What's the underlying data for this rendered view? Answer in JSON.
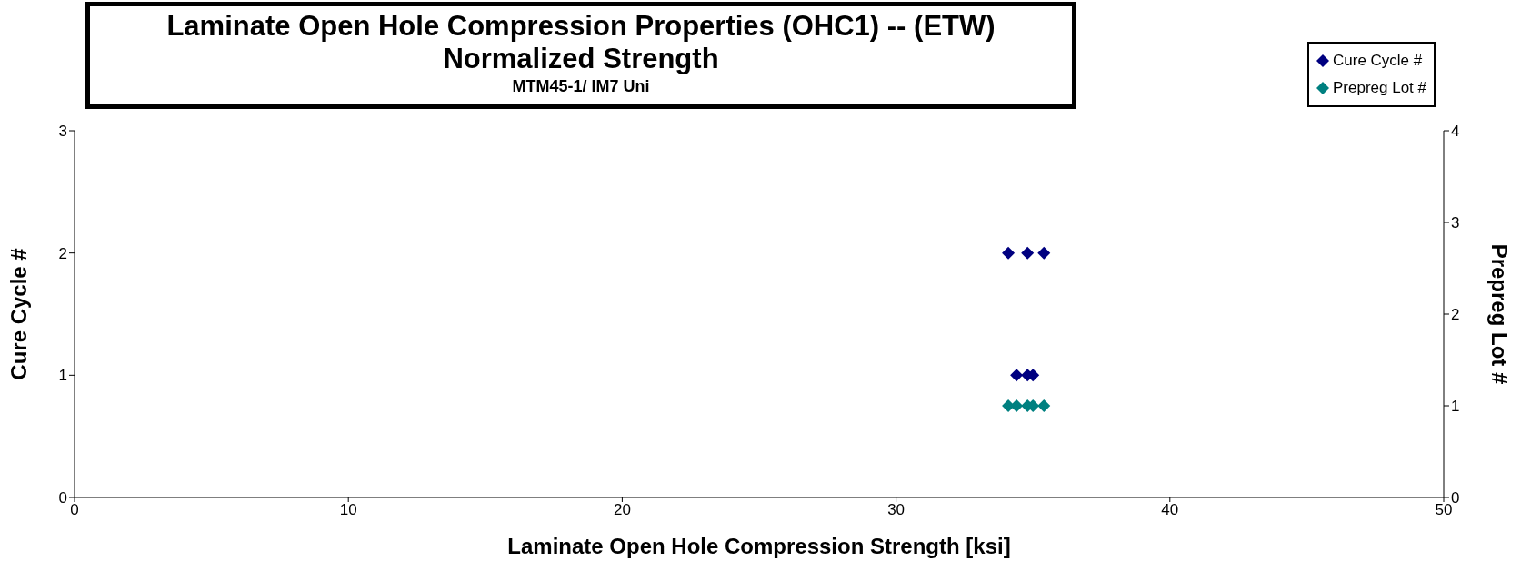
{
  "chart_data": {
    "type": "scatter",
    "title": "Laminate Open Hole Compression Properties (OHC1) -- (ETW)",
    "subtitle": "Normalized Strength",
    "annotations": [
      "MTM45-1/ IM7 Uni"
    ],
    "xlabel": "Laminate Open Hole Compression Strength  [ksi]",
    "ylabel": "Cure Cycle  #",
    "y2label": "Prepreg Lot #",
    "xlim": [
      0,
      50
    ],
    "xticks": [
      0,
      10,
      20,
      30,
      40,
      50
    ],
    "ylim": [
      0,
      3
    ],
    "yticks": [
      0,
      1,
      2,
      3
    ],
    "y2lim": [
      0,
      4
    ],
    "y2ticks": [
      0,
      1,
      2,
      3,
      4
    ],
    "marker": "diamond",
    "grid": false,
    "legend": "top right",
    "series": [
      {
        "name": "Cure Cycle #",
        "color": "#000080",
        "x": [
          34.1,
          34.8,
          35.4,
          34.4,
          34.8,
          35.0
        ],
        "values": [
          2,
          2,
          2,
          1,
          1,
          1
        ]
      },
      {
        "name": "Prepreg Lot #",
        "color": "#008080",
        "axis": "y2",
        "x": [
          34.1,
          34.4,
          34.8,
          35.0,
          35.4
        ],
        "values": [
          1,
          1,
          1,
          1,
          1
        ]
      }
    ]
  }
}
